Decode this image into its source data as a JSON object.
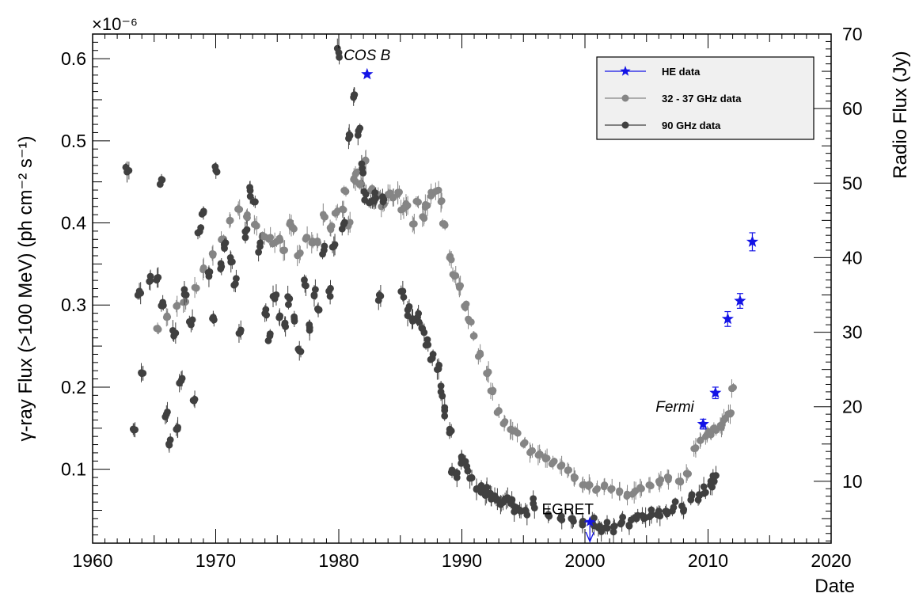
{
  "chart_data": {
    "type": "scatter",
    "xlabel": "Date",
    "ylabel": "γ-ray Flux (>100 MeV) (ph cm⁻² s⁻¹)",
    "ylabel_right": "Radio Flux (Jy)",
    "y_exponent_label": "×10⁻⁶",
    "xlim": [
      1960,
      2020
    ],
    "ylim": [
      0.01,
      0.63
    ],
    "ylim_right": [
      1.7,
      70
    ],
    "y_unit_scale": 1e-06,
    "grid": false,
    "legend_position": "top-right",
    "x_ticks": [
      "1960",
      "1970",
      "1980",
      "1990",
      "2000",
      "2010",
      "2020"
    ],
    "y_ticks": [
      "0.1",
      "0.2",
      "0.3",
      "0.4",
      "0.5",
      "0.6"
    ],
    "y_right_ticks": [
      "10",
      "20",
      "30",
      "40",
      "50",
      "60",
      "70"
    ],
    "annotations": [
      {
        "text": "COS B",
        "x": 1982.3,
        "y": 0.598,
        "italic": true
      },
      {
        "text": "Fermi",
        "x": 2007.3,
        "y": 0.17,
        "italic": true
      },
      {
        "text": "EGRET",
        "x": 1998.6,
        "y": 0.045,
        "italic": false
      }
    ],
    "series": [
      {
        "name": "HE data",
        "axis": "left",
        "color": "#1414e6",
        "marker": "star",
        "points": [
          {
            "x": 1982.3,
            "y": 0.581,
            "err": 0.0
          },
          {
            "x": 2009.6,
            "y": 0.155,
            "err": 0.006
          },
          {
            "x": 2010.6,
            "y": 0.193,
            "err": 0.007
          },
          {
            "x": 2011.6,
            "y": 0.283,
            "err": 0.009
          },
          {
            "x": 2012.6,
            "y": 0.305,
            "err": 0.009
          },
          {
            "x": 2013.6,
            "y": 0.377,
            "err": 0.011
          }
        ],
        "upper_limits": [
          {
            "x": 2000.4,
            "y": 0.036
          }
        ]
      },
      {
        "name": "32 - 37 GHz data",
        "axis": "right",
        "color": "#858585",
        "marker": "circle",
        "points": [
          {
            "x": 1965.2,
            "y": 30.5
          },
          {
            "x": 1966.0,
            "y": 32.0
          },
          {
            "x": 1966.8,
            "y": 33.5
          },
          {
            "x": 1967.5,
            "y": 34.0
          },
          {
            "x": 1968.3,
            "y": 36.0
          },
          {
            "x": 1969.0,
            "y": 38.5
          },
          {
            "x": 1969.8,
            "y": 40.5
          },
          {
            "x": 1970.5,
            "y": 42.5
          },
          {
            "x": 1971.2,
            "y": 45.0
          },
          {
            "x": 1971.8,
            "y": 46.5
          },
          {
            "x": 1972.5,
            "y": 45.5
          },
          {
            "x": 1973.2,
            "y": 44.5
          },
          {
            "x": 1973.8,
            "y": 43.0
          },
          {
            "x": 1974.3,
            "y": 42.5
          },
          {
            "x": 1974.8,
            "y": 42.0
          },
          {
            "x": 1975.2,
            "y": 42.5
          },
          {
            "x": 1975.6,
            "y": 41.0
          },
          {
            "x": 1976.0,
            "y": 44.5
          },
          {
            "x": 1976.3,
            "y": 44.0
          },
          {
            "x": 1976.8,
            "y": 40.5
          },
          {
            "x": 1977.3,
            "y": 42.5
          },
          {
            "x": 1977.8,
            "y": 42.0
          },
          {
            "x": 1978.3,
            "y": 42.0
          },
          {
            "x": 1978.8,
            "y": 45.5
          },
          {
            "x": 1979.3,
            "y": 44.0
          },
          {
            "x": 1979.8,
            "y": 46.0
          },
          {
            "x": 1980.3,
            "y": 46.5
          },
          {
            "x": 1980.5,
            "y": 49.0
          },
          {
            "x": 1980.8,
            "y": 44.5
          },
          {
            "x": 1981.2,
            "y": 50.5
          },
          {
            "x": 1981.5,
            "y": 51.5
          },
          {
            "x": 1981.8,
            "y": 50.0
          },
          {
            "x": 1982.2,
            "y": 53.0
          },
          {
            "x": 1982.6,
            "y": 49.0
          },
          {
            "x": 1982.8,
            "y": 47.5
          },
          {
            "x": 1983.2,
            "y": 48.5
          },
          {
            "x": 1983.6,
            "y": 47.0
          },
          {
            "x": 1984.0,
            "y": 48.5
          },
          {
            "x": 1984.4,
            "y": 48.0
          },
          {
            "x": 1984.8,
            "y": 48.5
          },
          {
            "x": 1985.2,
            "y": 46.5
          },
          {
            "x": 1985.6,
            "y": 47.0
          },
          {
            "x": 1986.0,
            "y": 44.5
          },
          {
            "x": 1986.4,
            "y": 47.5
          },
          {
            "x": 1986.8,
            "y": 45.5
          },
          {
            "x": 1987.2,
            "y": 47.0
          },
          {
            "x": 1987.6,
            "y": 48.5
          },
          {
            "x": 1988.0,
            "y": 49.0
          },
          {
            "x": 1988.3,
            "y": 47.5
          },
          {
            "x": 1988.6,
            "y": 44.5
          },
          {
            "x": 1989.0,
            "y": 40.0
          },
          {
            "x": 1989.4,
            "y": 37.5
          },
          {
            "x": 1989.8,
            "y": 36.0
          },
          {
            "x": 1990.2,
            "y": 33.5
          },
          {
            "x": 1990.6,
            "y": 31.5
          },
          {
            "x": 1991.0,
            "y": 29.5
          },
          {
            "x": 1991.5,
            "y": 27.0
          },
          {
            "x": 1992.0,
            "y": 24.5
          },
          {
            "x": 1992.5,
            "y": 22.0
          },
          {
            "x": 1993.0,
            "y": 19.5
          },
          {
            "x": 1993.5,
            "y": 18.0
          },
          {
            "x": 1994.0,
            "y": 17.0
          },
          {
            "x": 1994.5,
            "y": 16.5
          },
          {
            "x": 1995.0,
            "y": 15.0
          },
          {
            "x": 1995.6,
            "y": 14.0
          },
          {
            "x": 1996.2,
            "y": 13.5
          },
          {
            "x": 1996.8,
            "y": 13.0
          },
          {
            "x": 1997.4,
            "y": 12.5
          },
          {
            "x": 1998.0,
            "y": 12.0
          },
          {
            "x": 1998.6,
            "y": 11.5
          },
          {
            "x": 1999.2,
            "y": 10.5
          },
          {
            "x": 1999.8,
            "y": 9.5
          },
          {
            "x": 2000.4,
            "y": 9.5
          },
          {
            "x": 2001.0,
            "y": 9.0
          },
          {
            "x": 2001.6,
            "y": 9.5
          },
          {
            "x": 2002.2,
            "y": 9.0
          },
          {
            "x": 2002.8,
            "y": 8.5
          },
          {
            "x": 2003.4,
            "y": 8.0
          },
          {
            "x": 2004.0,
            "y": 8.5
          },
          {
            "x": 2004.6,
            "y": 9.0
          },
          {
            "x": 2005.2,
            "y": 9.5
          },
          {
            "x": 2006.0,
            "y": 10.0
          },
          {
            "x": 2006.8,
            "y": 10.5
          },
          {
            "x": 2007.6,
            "y": 10.0
          },
          {
            "x": 2008.4,
            "y": 11.0
          },
          {
            "x": 2009.0,
            "y": 14.5
          },
          {
            "x": 2009.4,
            "y": 15.5
          },
          {
            "x": 2009.8,
            "y": 16.0
          },
          {
            "x": 2010.2,
            "y": 16.5
          },
          {
            "x": 2010.6,
            "y": 17.0
          },
          {
            "x": 2011.0,
            "y": 17.5
          },
          {
            "x": 2011.4,
            "y": 18.5
          },
          {
            "x": 2011.8,
            "y": 19.0
          },
          {
            "x": 2012.0,
            "y": 22.5
          }
        ]
      },
      {
        "name": "90 GHz data",
        "axis": "right",
        "color": "#404040",
        "marker": "circle",
        "points": [
          {
            "x": 1962.8,
            "y": 51.5
          },
          {
            "x": 1963.3,
            "y": 17.0
          },
          {
            "x": 1963.8,
            "y": 35.5
          },
          {
            "x": 1964.1,
            "y": 24.5
          },
          {
            "x": 1964.7,
            "y": 37.5
          },
          {
            "x": 1965.2,
            "y": 37.0
          },
          {
            "x": 1965.6,
            "y": 50.5
          },
          {
            "x": 1965.7,
            "y": 34.0
          },
          {
            "x": 1966.0,
            "y": 19.0
          },
          {
            "x": 1966.2,
            "y": 15.0
          },
          {
            "x": 1966.6,
            "y": 29.5
          },
          {
            "x": 1966.9,
            "y": 17.0
          },
          {
            "x": 1967.2,
            "y": 23.5
          },
          {
            "x": 1967.6,
            "y": 35.0
          },
          {
            "x": 1968.0,
            "y": 31.0
          },
          {
            "x": 1968.3,
            "y": 21.0
          },
          {
            "x": 1968.7,
            "y": 43.5
          },
          {
            "x": 1969.0,
            "y": 46.0
          },
          {
            "x": 1969.4,
            "y": 38.0
          },
          {
            "x": 1969.8,
            "y": 32.0
          },
          {
            "x": 1970.1,
            "y": 51.5
          },
          {
            "x": 1970.4,
            "y": 38.5
          },
          {
            "x": 1970.8,
            "y": 42.0
          },
          {
            "x": 1971.2,
            "y": 40.0
          },
          {
            "x": 1971.6,
            "y": 36.5
          },
          {
            "x": 1972.0,
            "y": 30.0
          },
          {
            "x": 1972.4,
            "y": 43.5
          },
          {
            "x": 1972.8,
            "y": 49.0
          },
          {
            "x": 1973.2,
            "y": 47.5
          },
          {
            "x": 1973.6,
            "y": 41.5
          },
          {
            "x": 1974.0,
            "y": 32.5
          },
          {
            "x": 1974.4,
            "y": 29.5
          },
          {
            "x": 1974.8,
            "y": 34.5
          },
          {
            "x": 1975.2,
            "y": 32.0
          },
          {
            "x": 1975.6,
            "y": 31.0
          },
          {
            "x": 1976.0,
            "y": 34.5
          },
          {
            "x": 1976.4,
            "y": 31.5
          },
          {
            "x": 1976.8,
            "y": 27.5
          },
          {
            "x": 1977.2,
            "y": 37.0
          },
          {
            "x": 1977.6,
            "y": 31.0
          },
          {
            "x": 1978.0,
            "y": 35.0
          },
          {
            "x": 1978.4,
            "y": 33.0
          },
          {
            "x": 1978.8,
            "y": 41.0
          },
          {
            "x": 1979.2,
            "y": 35.5
          },
          {
            "x": 1979.6,
            "y": 41.5
          },
          {
            "x": 1980.0,
            "y": 67.5
          },
          {
            "x": 1980.4,
            "y": 44.5
          },
          {
            "x": 1980.8,
            "y": 56.0
          },
          {
            "x": 1981.2,
            "y": 61.5
          },
          {
            "x": 1981.6,
            "y": 57.0
          },
          {
            "x": 1981.9,
            "y": 52.0
          },
          {
            "x": 1982.2,
            "y": 48.5
          },
          {
            "x": 1982.6,
            "y": 47.5
          },
          {
            "x": 1983.0,
            "y": 48.0
          },
          {
            "x": 1983.3,
            "y": 35.0
          },
          {
            "x": 1983.6,
            "y": 47.5
          },
          {
            "x": 1985.2,
            "y": 35.5
          },
          {
            "x": 1985.6,
            "y": 33.0
          },
          {
            "x": 1986.0,
            "y": 31.5
          },
          {
            "x": 1986.4,
            "y": 32.0
          },
          {
            "x": 1986.8,
            "y": 30.5
          },
          {
            "x": 1987.2,
            "y": 29.0
          },
          {
            "x": 1987.6,
            "y": 26.5
          },
          {
            "x": 1988.0,
            "y": 25.0
          },
          {
            "x": 1988.3,
            "y": 22.0
          },
          {
            "x": 1988.6,
            "y": 19.5
          },
          {
            "x": 1989.0,
            "y": 16.5
          },
          {
            "x": 1989.2,
            "y": 11.5
          },
          {
            "x": 1989.6,
            "y": 10.5
          },
          {
            "x": 1990.0,
            "y": 13.0
          },
          {
            "x": 1990.4,
            "y": 12.0
          },
          {
            "x": 1990.8,
            "y": 10.5
          },
          {
            "x": 1991.2,
            "y": 9.0
          },
          {
            "x": 1991.6,
            "y": 9.0
          },
          {
            "x": 1992.0,
            "y": 8.5
          },
          {
            "x": 1992.4,
            "y": 8.0
          },
          {
            "x": 1992.8,
            "y": 7.5
          },
          {
            "x": 1993.2,
            "y": 7.0
          },
          {
            "x": 1993.6,
            "y": 7.5
          },
          {
            "x": 1994.0,
            "y": 7.0
          },
          {
            "x": 1994.4,
            "y": 6.5
          },
          {
            "x": 1994.8,
            "y": 6.0
          },
          {
            "x": 1995.2,
            "y": 6.0
          },
          {
            "x": 1995.8,
            "y": 7.0
          },
          {
            "x": 1997.0,
            "y": 5.5
          },
          {
            "x": 1998.0,
            "y": 5.0
          },
          {
            "x": 1999.0,
            "y": 5.0
          },
          {
            "x": 1999.8,
            "y": 4.5
          },
          {
            "x": 2000.6,
            "y": 4.5
          },
          {
            "x": 2001.2,
            "y": 4.0
          },
          {
            "x": 2001.8,
            "y": 4.5
          },
          {
            "x": 2002.4,
            "y": 4.0
          },
          {
            "x": 2003.0,
            "y": 4.5
          },
          {
            "x": 2003.6,
            "y": 4.0
          },
          {
            "x": 2004.2,
            "y": 5.0
          },
          {
            "x": 2004.8,
            "y": 5.0
          },
          {
            "x": 2005.4,
            "y": 5.5
          },
          {
            "x": 2006.0,
            "y": 6.0
          },
          {
            "x": 2006.6,
            "y": 6.0
          },
          {
            "x": 2007.2,
            "y": 6.5
          },
          {
            "x": 2008.0,
            "y": 6.0
          },
          {
            "x": 2008.6,
            "y": 7.5
          },
          {
            "x": 2009.2,
            "y": 7.5
          },
          {
            "x": 2009.8,
            "y": 8.5
          },
          {
            "x": 2010.2,
            "y": 9.5
          },
          {
            "x": 2010.5,
            "y": 10.0
          }
        ]
      }
    ]
  }
}
